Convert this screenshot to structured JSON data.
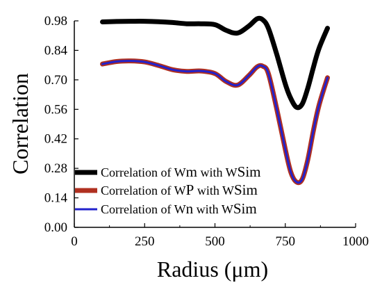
{
  "chart_data": {
    "type": "line",
    "xlabel": "Radius (μm)",
    "ylabel": "Correlation",
    "xlim": [
      0,
      1000
    ],
    "ylim": [
      0,
      0.98
    ],
    "xticks": [
      0,
      250,
      500,
      750,
      1000
    ],
    "yticks": [
      0.0,
      0.14,
      0.28,
      0.42,
      0.56,
      0.7,
      0.84,
      0.98
    ],
    "xtick_labels": [
      "0",
      "250",
      "500",
      "750",
      "1000"
    ],
    "ytick_labels": [
      "0.00",
      "0.14",
      "0.28",
      "0.42",
      "0.56",
      "0.70",
      "0.84",
      "0.98"
    ],
    "grid": false,
    "legend_position": "bottom-left",
    "series": [
      {
        "name": "Correlation of Wm with WSim",
        "legend": {
          "prefix": "Correlation of W",
          "sub1": "m",
          "mid": " with W",
          "sub2": "Sim"
        },
        "color": "#000000",
        "x": [
          100,
          150,
          200,
          250,
          300,
          350,
          400,
          450,
          500,
          540,
          580,
          620,
          650,
          670,
          690,
          720,
          750,
          770,
          790,
          810,
          830,
          850,
          870,
          900
        ],
        "y": [
          0.975,
          0.977,
          0.978,
          0.978,
          0.976,
          0.972,
          0.966,
          0.966,
          0.962,
          0.935,
          0.922,
          0.955,
          0.99,
          0.985,
          0.945,
          0.82,
          0.68,
          0.61,
          0.57,
          0.585,
          0.66,
          0.76,
          0.85,
          0.945
        ]
      },
      {
        "name": "Correlation of Wp with WSim",
        "legend": {
          "prefix": "Correlation of W",
          "sub1": "P",
          "mid": " with W",
          "sub2": "Sim"
        },
        "color": "#b03020",
        "x": [
          100,
          150,
          200,
          250,
          300,
          350,
          400,
          450,
          500,
          540,
          580,
          620,
          650,
          670,
          690,
          720,
          750,
          770,
          790,
          810,
          830,
          850,
          870,
          900
        ],
        "y": [
          0.775,
          0.787,
          0.79,
          0.785,
          0.768,
          0.748,
          0.74,
          0.742,
          0.73,
          0.692,
          0.675,
          0.72,
          0.762,
          0.765,
          0.73,
          0.56,
          0.37,
          0.26,
          0.215,
          0.228,
          0.32,
          0.46,
          0.58,
          0.71
        ]
      },
      {
        "name": "Correlation of Wn with WSim",
        "legend": {
          "prefix": "Correlation of W",
          "sub1": "n",
          "mid": " with W",
          "sub2": "Sim"
        },
        "color": "#2222cc",
        "x": [
          100,
          150,
          200,
          250,
          300,
          350,
          400,
          450,
          500,
          540,
          580,
          620,
          650,
          670,
          690,
          720,
          750,
          770,
          790,
          810,
          830,
          850,
          870,
          900
        ],
        "y": [
          0.775,
          0.787,
          0.79,
          0.785,
          0.768,
          0.748,
          0.74,
          0.742,
          0.73,
          0.692,
          0.675,
          0.72,
          0.762,
          0.765,
          0.73,
          0.56,
          0.37,
          0.26,
          0.215,
          0.228,
          0.32,
          0.46,
          0.58,
          0.71
        ]
      }
    ]
  }
}
